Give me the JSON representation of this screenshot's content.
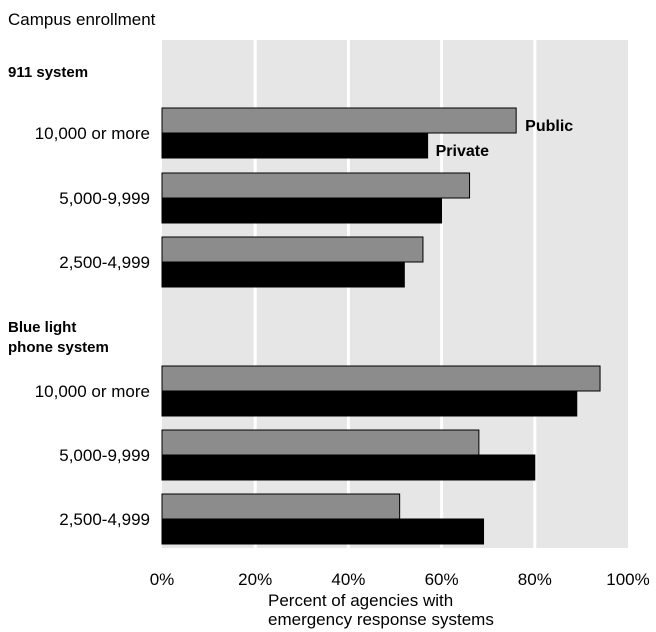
{
  "chart_data": {
    "type": "bar",
    "orientation": "horizontal",
    "title": "Campus enrollment",
    "xlabel_lines": [
      "Percent of agencies with",
      "emergency response systems"
    ],
    "xlim": [
      0,
      100
    ],
    "xticks": [
      "0%",
      "20%",
      "40%",
      "60%",
      "80%",
      "100%"
    ],
    "grid": true,
    "colors": {
      "Public": "#8c8c8c",
      "Private": "#000000",
      "plot_background": "#e6e6e6",
      "gridline": "#ffffff"
    },
    "series": [
      {
        "name": "Public"
      },
      {
        "name": "Private"
      }
    ],
    "groups": [
      {
        "heading_lines": [
          "911 system"
        ],
        "categories": [
          "10,000 or more",
          "5,000-9,999",
          "2,500-4,999"
        ],
        "values": {
          "Public": [
            76,
            66,
            56
          ],
          "Private": [
            57,
            60,
            52
          ]
        }
      },
      {
        "heading_lines": [
          "Blue light",
          "phone system"
        ],
        "categories": [
          "10,000 or more",
          "5,000-9,999",
          "2,500-4,999"
        ],
        "values": {
          "Public": [
            94,
            68,
            51
          ],
          "Private": [
            89,
            80,
            69
          ]
        }
      }
    ]
  }
}
